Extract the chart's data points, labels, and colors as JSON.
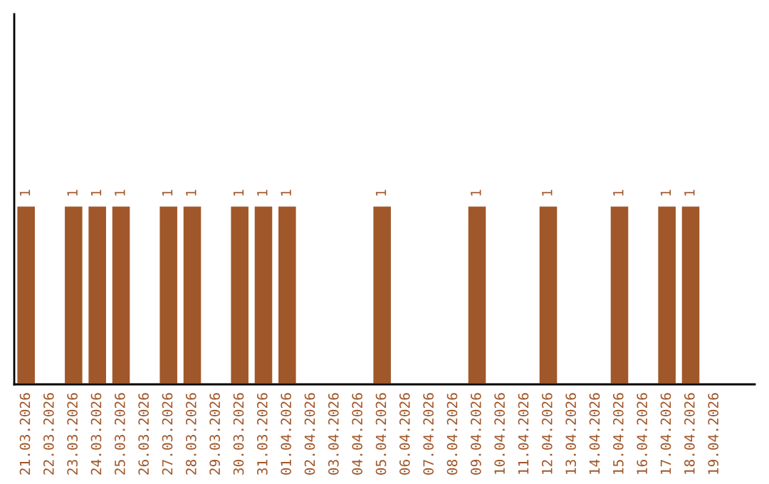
{
  "chart_data": {
    "type": "bar",
    "data_labels": true,
    "color": "#a0572a",
    "grid": false,
    "legend": false,
    "categories": [
      "21.03.2026",
      "22.03.2026",
      "23.03.2026",
      "24.03.2026",
      "25.03.2026",
      "26.03.2026",
      "27.03.2026",
      "28.03.2026",
      "29.03.2026",
      "30.03.2026",
      "31.03.2026",
      "01.04.2026",
      "02.04.2026",
      "03.04.2026",
      "04.04.2026",
      "05.04.2026",
      "06.04.2026",
      "07.04.2026",
      "08.04.2026",
      "09.04.2026",
      "10.04.2026",
      "11.04.2026",
      "12.04.2026",
      "13.04.2026",
      "14.04.2026",
      "15.04.2026",
      "16.04.2026",
      "17.04.2026",
      "18.04.2026",
      "19.04.2026"
    ],
    "values": [
      1,
      null,
      1,
      1,
      1,
      null,
      1,
      1,
      null,
      1,
      1,
      1,
      null,
      null,
      null,
      1,
      null,
      null,
      null,
      1,
      null,
      null,
      1,
      null,
      null,
      1,
      null,
      1,
      1,
      null
    ]
  }
}
